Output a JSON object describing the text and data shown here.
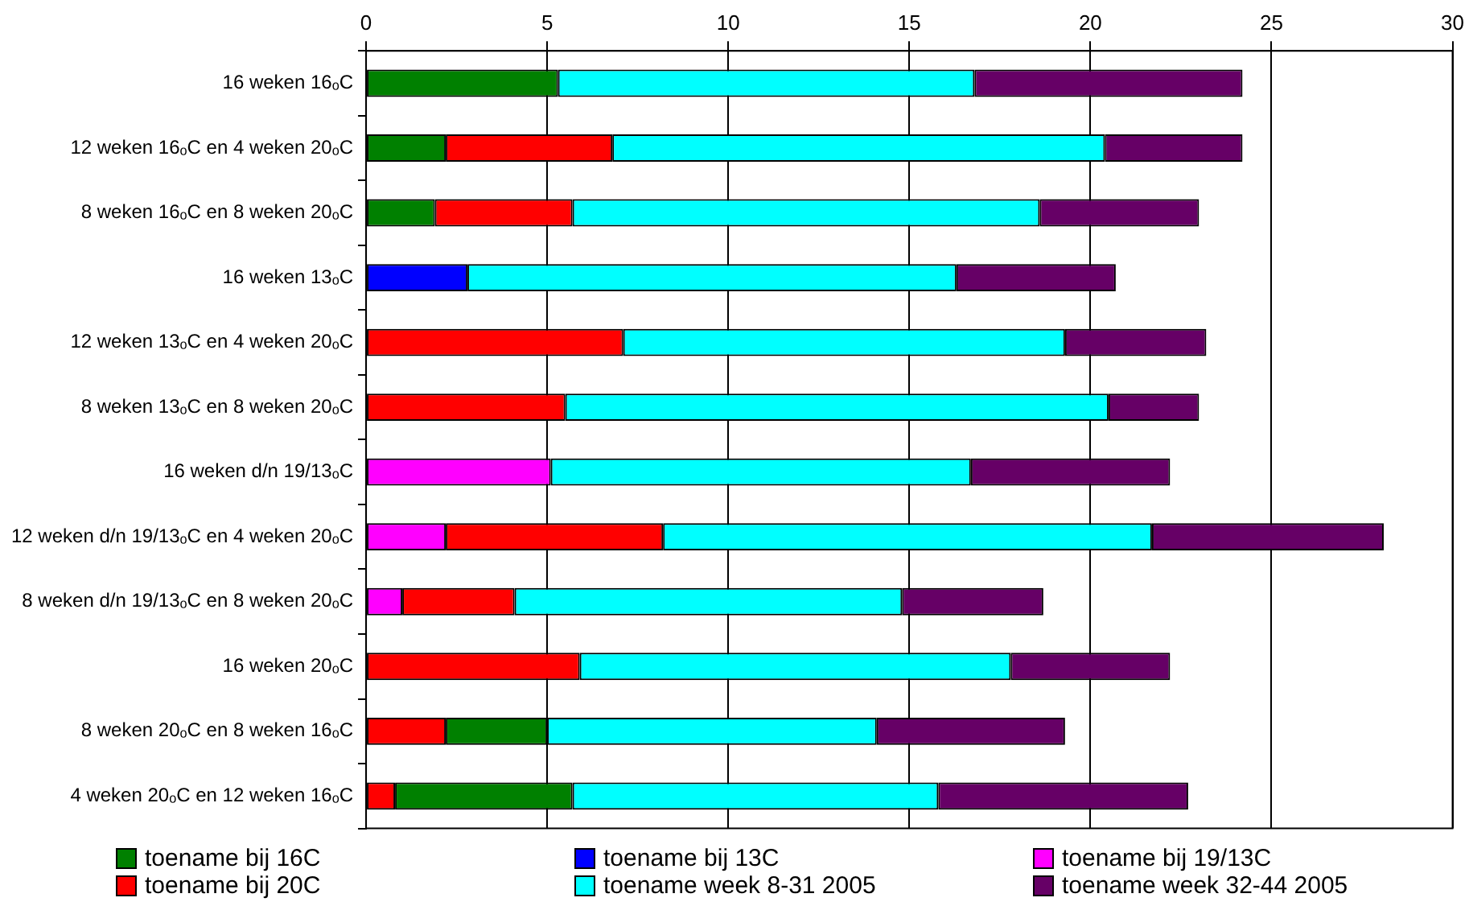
{
  "chart_data": {
    "type": "bar",
    "orientation": "horizontal",
    "stacked": true,
    "categories": [
      "16 weken 16ₒC",
      "12 weken 16ₒC en 4 weken 20ₒC",
      "8 weken 16ₒC en 8 weken 20ₒC",
      "16 weken 13ₒC",
      "12 weken 13ₒC en 4 weken 20ₒC",
      "8 weken 13ₒC en 8 weken 20ₒC",
      "16 weken d/n 19/13ₒC",
      "12 weken d/n 19/13ₒC en 4 weken 20ₒC",
      "8 weken d/n 19/13ₒC en 8 weken 20ₒC",
      "16 weken 20ₒC",
      "8 weken 20ₒC en 8 weken 16ₒC",
      "4 weken 20ₒC en 12 weken 16ₒC"
    ],
    "series": [
      {
        "name": "toename bij 16C",
        "color": "#008000",
        "values": [
          5.3,
          2.2,
          1.9,
          null,
          null,
          null,
          null,
          null,
          null,
          null,
          null,
          null
        ]
      },
      {
        "name": "toename bij 13C",
        "color": "#0000ff",
        "values": [
          null,
          null,
          null,
          2.8,
          null,
          null,
          null,
          null,
          null,
          null,
          null,
          null
        ]
      },
      {
        "name": "toename bij 19/13C",
        "color": "#ff00ff",
        "values": [
          null,
          null,
          null,
          null,
          null,
          null,
          5.1,
          2.2,
          1.0,
          null,
          null,
          null
        ]
      },
      {
        "name": "toename bij 20C",
        "color": "#ff0000",
        "values": [
          null,
          4.6,
          3.8,
          null,
          7.1,
          5.5,
          null,
          6.0,
          3.1,
          5.9,
          2.2,
          0.8
        ]
      },
      {
        "color": "#008000",
        "values": [
          null,
          null,
          null,
          null,
          null,
          null,
          null,
          null,
          null,
          null,
          2.8,
          4.9
        ]
      },
      {
        "name": "toename week 8-31 2005",
        "color": "#00ffff",
        "values": [
          11.5,
          13.6,
          12.9,
          13.5,
          12.2,
          15.0,
          11.6,
          13.5,
          10.7,
          11.9,
          9.1,
          10.1
        ]
      },
      {
        "name": "toename week 32-44 2005",
        "color": "#660066",
        "values": [
          7.4,
          3.8,
          4.4,
          4.4,
          3.9,
          2.5,
          5.5,
          6.4,
          3.9,
          4.4,
          5.2,
          6.9
        ]
      }
    ],
    "xlim": [
      0,
      30
    ],
    "xticks": [
      0,
      5,
      10,
      15,
      20,
      25,
      30
    ],
    "grid": "x",
    "legend": "bottom"
  }
}
